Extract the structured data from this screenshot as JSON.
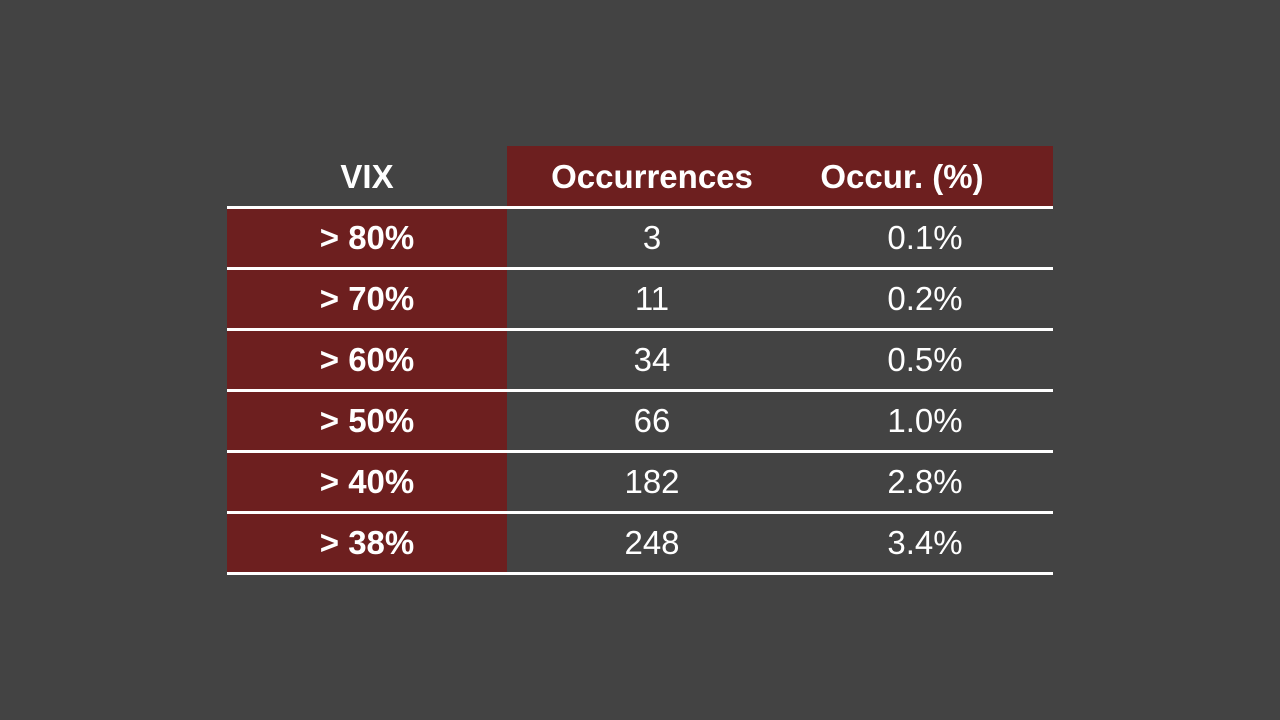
{
  "table": {
    "headers": [
      "VIX",
      "Occurrences",
      "Occur. (%)"
    ],
    "rows": [
      [
        "> 80%",
        "3",
        "0.1%"
      ],
      [
        "> 70%",
        "11",
        "0.2%"
      ],
      [
        "> 60%",
        "34",
        "0.5%"
      ],
      [
        "> 50%",
        "66",
        "1.0%"
      ],
      [
        "> 40%",
        "182",
        "2.8%"
      ],
      [
        "> 38%",
        "248",
        "3.4%"
      ]
    ]
  }
}
